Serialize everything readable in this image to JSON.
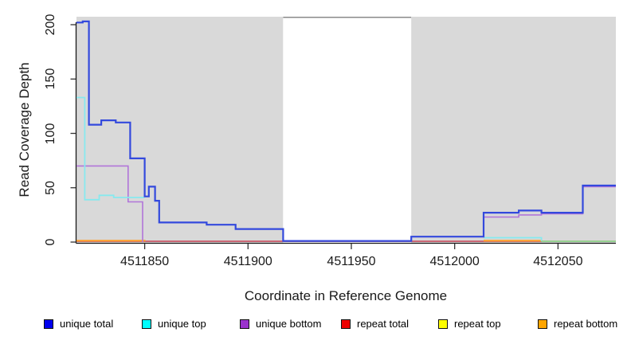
{
  "figure": {
    "y_axis": {
      "label": "Read Coverage Depth",
      "ticks": [
        0,
        50,
        100,
        150,
        200
      ]
    },
    "x_axis": {
      "label": "Coordinate in Reference Genome",
      "ticks": [
        4511850,
        4511900,
        4511950,
        4512000,
        4512050
      ]
    },
    "background_regions": [
      {
        "kind": "covered",
        "from": 4511817,
        "to": 4511917,
        "color": "#d9d9d9"
      },
      {
        "kind": "gap",
        "from": 4511917,
        "to": 4511979,
        "color": "#ffffff",
        "top_border_color": "#8a8a8a"
      },
      {
        "kind": "covered",
        "from": 4511979,
        "to": 4512078,
        "color": "#d9d9d9"
      }
    ]
  },
  "legend": {
    "items": [
      {
        "label": "unique total",
        "color": "#0000ee"
      },
      {
        "label": "unique top",
        "color": "#00ffff"
      },
      {
        "label": "unique bottom",
        "color": "#9a32cd"
      },
      {
        "label": "repeat total",
        "color": "#ee0000"
      },
      {
        "label": "repeat top",
        "color": "#ffff00"
      },
      {
        "label": "repeat bottom",
        "color": "#ffa500"
      }
    ]
  },
  "chart_data": {
    "type": "line",
    "interpolation": "step-after",
    "title": "",
    "xlabel": "Coordinate in Reference Genome",
    "ylabel": "Read Coverage Depth",
    "xlim": [
      4511817,
      4512078
    ],
    "ylim": [
      0,
      207
    ],
    "grid": false,
    "legend_position": "bottom",
    "series": [
      {
        "name": "repeat top",
        "line_color": "#f0ec55",
        "stroke_width": 1.6,
        "segments": [
          [
            [
              4511817,
              0.7
            ],
            [
              4512078,
              0.7
            ]
          ]
        ]
      },
      {
        "name": "repeat total",
        "line_color": "#c7546f",
        "stroke_width": 1.8,
        "segments": [
          [
            [
              4511817,
              0.7
            ],
            [
              4512078,
              0.7
            ]
          ]
        ]
      },
      {
        "name": "repeat bottom",
        "line_color": "#ff9e25",
        "stroke_width": 2,
        "segments": [
          [
            [
              4511817,
              1.3
            ],
            [
              4511850,
              1.3
            ],
            [
              4511850,
              0.7
            ]
          ],
          [
            [
              4512014,
              1.3
            ],
            [
              4512042,
              1.3
            ],
            [
              4512042,
              0.7
            ]
          ]
        ]
      },
      {
        "name": "unique bottom",
        "line_color": "#b175d9",
        "stroke_width": 1.6,
        "segments": [
          [
            [
              4511817,
              70
            ],
            [
              4511842,
              70
            ],
            [
              4511842,
              37
            ],
            [
              4511849,
              37
            ],
            [
              4511849,
              0
            ]
          ],
          [
            [
              4512014,
              23
            ],
            [
              4512031,
              25
            ],
            [
              4512042,
              26
            ],
            [
              4512062,
              51
            ],
            [
              4512078,
              51
            ]
          ]
        ]
      },
      {
        "name": "unique top",
        "line_color": "#87e9ee",
        "stroke_width": 1.8,
        "segments": [
          [
            [
              4511817,
              133
            ],
            [
              4511821,
              39
            ],
            [
              4511828,
              43
            ],
            [
              4511835,
              41
            ],
            [
              4511850,
              41
            ]
          ],
          [
            [
              4512014,
              4
            ],
            [
              4512042,
              4
            ],
            [
              4512042,
              0.7
            ]
          ]
        ]
      },
      {
        "name": "unique total",
        "line_color": "#3349dd",
        "stroke_width": 2.2,
        "segments": [
          [
            [
              4511817,
              202
            ],
            [
              4511820,
              203
            ],
            [
              4511823,
              108
            ],
            [
              4511829,
              112
            ],
            [
              4511836,
              110
            ],
            [
              4511843,
              77
            ],
            [
              4511850,
              42
            ],
            [
              4511852,
              51
            ],
            [
              4511855,
              38
            ],
            [
              4511857,
              18
            ],
            [
              4511880,
              16
            ],
            [
              4511894,
              12
            ],
            [
              4511917,
              1
            ],
            [
              4511979,
              5
            ],
            [
              4512014,
              27
            ],
            [
              4512031,
              29
            ],
            [
              4512042,
              27
            ],
            [
              4512062,
              52
            ],
            [
              4512078,
              52
            ]
          ]
        ]
      }
    ],
    "zero_line_overlap_blend": {
      "from": 4512042,
      "to": 4512078,
      "value": 0.7,
      "color": "#92d592",
      "note": "cyan-over-yellow overlap rendered green at zero depth"
    }
  }
}
